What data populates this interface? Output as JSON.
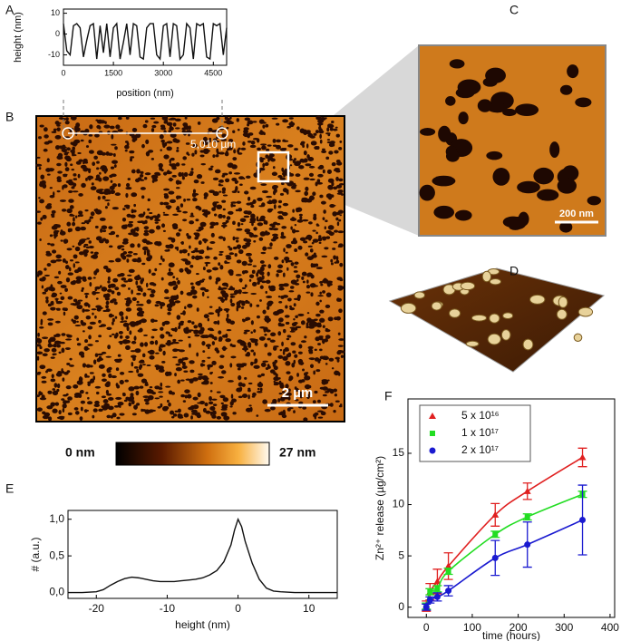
{
  "panels": {
    "a": "A",
    "b": "B",
    "c": "C",
    "d": "D",
    "e": "E",
    "f": "F"
  },
  "image_labels": {
    "profile_length": "5,010 µm",
    "scale_b": "2 µm",
    "scale_c": "200 nm",
    "colorbar_min": "0 nm",
    "colorbar_max": "27 nm"
  },
  "chart_data": [
    {
      "type": "line",
      "ylabel": "height (nm)",
      "xlabel": "position (nm)",
      "color": "#111111",
      "x": [
        0,
        100,
        200,
        300,
        400,
        500,
        600,
        700,
        800,
        900,
        1000,
        1100,
        1200,
        1300,
        1400,
        1500,
        1600,
        1700,
        1800,
        1900,
        2000,
        2100,
        2200,
        2300,
        2400,
        2500,
        2600,
        2700,
        2800,
        2900,
        3000,
        3100,
        3200,
        3300,
        3400,
        3500,
        3600,
        3700,
        3800,
        3900,
        4000,
        4100,
        4200,
        4300,
        4400,
        4500,
        4600,
        4700,
        4800,
        4900
      ],
      "values": [
        5,
        -8,
        -10,
        4,
        5,
        3,
        -11,
        -3,
        4,
        5,
        -12,
        4,
        -9,
        5,
        -11,
        3,
        5,
        -12,
        -4,
        5,
        -10,
        5,
        4,
        -11,
        -12,
        3,
        5,
        5,
        -10,
        -12,
        4,
        5,
        -11,
        5,
        4,
        -12,
        -10,
        5,
        3,
        -12,
        5,
        4,
        5,
        -11,
        -12,
        5,
        4,
        5,
        -10,
        3
      ],
      "xlim": [
        0,
        4900
      ],
      "ylim": [
        -15,
        12
      ],
      "xticks": [
        0,
        1500,
        3000,
        4500
      ],
      "yticks": [
        -10,
        0,
        10
      ]
    },
    {
      "type": "line",
      "ylabel": "# (a.u.)",
      "xlabel": "height (nm)",
      "color": "#111111",
      "x": [
        -24,
        -22,
        -20,
        -19,
        -18,
        -17,
        -16,
        -15,
        -14,
        -13,
        -12,
        -11,
        -10,
        -9,
        -8,
        -7,
        -6,
        -5,
        -4,
        -3,
        -2,
        -1,
        -0.5,
        0,
        0.5,
        1,
        2,
        3,
        4,
        5,
        6,
        8,
        10,
        14
      ],
      "values": [
        0,
        0,
        0.01,
        0.04,
        0.1,
        0.15,
        0.19,
        0.21,
        0.2,
        0.18,
        0.16,
        0.15,
        0.15,
        0.15,
        0.16,
        0.17,
        0.18,
        0.2,
        0.24,
        0.3,
        0.42,
        0.65,
        0.85,
        1.0,
        0.9,
        0.7,
        0.4,
        0.18,
        0.06,
        0.02,
        0.01,
        0,
        0,
        0
      ],
      "xlim": [
        -24,
        14
      ],
      "ylim": [
        -0.08,
        1.12
      ],
      "xticks": [
        -20,
        -10,
        0,
        10
      ],
      "yticks": [
        {
          "value": 0,
          "label": "0,0"
        },
        {
          "value": 0.5,
          "label": "0,5"
        },
        {
          "value": 1,
          "label": "1,0"
        }
      ]
    },
    {
      "type": "scatter",
      "ylabel": "Zn²⁺ release (µg/cm²)",
      "xlabel": "time (hours)",
      "legend": "top-left",
      "x": [
        0,
        8,
        24,
        48,
        150,
        220,
        340
      ],
      "series": [
        {
          "name": "5 x 10¹⁶",
          "color": "#e02020",
          "marker": "triangle",
          "values": [
            0.1,
            1.5,
            2.5,
            4,
            9,
            11.3,
            14.6
          ],
          "errors": [
            0.5,
            0.8,
            1.2,
            1.3,
            1.1,
            0.8,
            0.9
          ]
        },
        {
          "name": "1 x 10¹⁷",
          "color": "#22dd22",
          "marker": "square",
          "values": [
            0.1,
            1.5,
            1.8,
            3.5,
            7.1,
            8.8,
            11
          ],
          "errors": [
            0.3,
            0.3,
            0.3,
            0.3,
            0.3,
            0.3,
            0.3
          ]
        },
        {
          "name": "2 x 10¹⁷",
          "color": "#1a1ad0",
          "marker": "circle",
          "values": [
            0,
            0.7,
            1,
            1.6,
            4.8,
            6.1,
            8.5
          ],
          "errors": [
            0.3,
            0.3,
            0.4,
            0.5,
            1.7,
            2.2,
            3.4
          ]
        }
      ],
      "xlim": [
        -40,
        410
      ],
      "ylim": [
        -1,
        20.3
      ],
      "xticks": [
        0,
        100,
        200,
        300,
        400
      ],
      "yticks": [
        0,
        5,
        10,
        15
      ]
    }
  ]
}
